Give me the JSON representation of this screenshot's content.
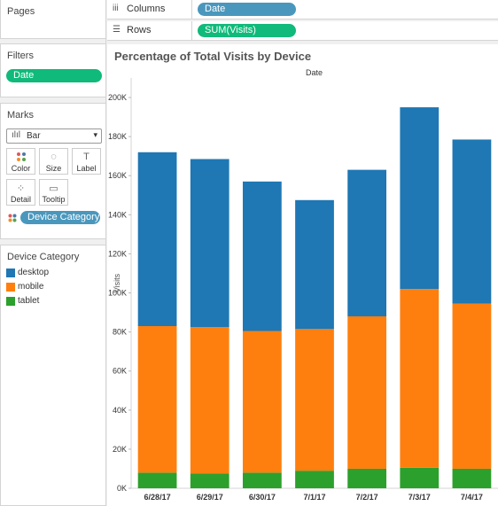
{
  "pages": {
    "title": "Pages"
  },
  "filters": {
    "title": "Filters",
    "pills": [
      "Date"
    ]
  },
  "marks": {
    "title": "Marks",
    "type": "Bar",
    "buttons": [
      {
        "label": "Color",
        "icon": "color-icon"
      },
      {
        "label": "Size",
        "icon": "size-icon"
      },
      {
        "label": "Label",
        "icon": "label-icon"
      },
      {
        "label": "Detail",
        "icon": "detail-icon"
      },
      {
        "label": "Tooltip",
        "icon": "tooltip-icon"
      }
    ],
    "color_pill": "Device Category"
  },
  "legend": {
    "title": "Device Category",
    "items": [
      {
        "label": "desktop",
        "color": "#1f77b4"
      },
      {
        "label": "mobile",
        "color": "#ff7f0e"
      },
      {
        "label": "tablet",
        "color": "#2ca02c"
      }
    ]
  },
  "shelves": {
    "columns": {
      "label": "Columns",
      "pill": "Date"
    },
    "rows": {
      "label": "Rows",
      "pill": "SUM(Visits)"
    }
  },
  "sheet": {
    "title": "Percentage of Total Visits by Device",
    "header": "Date"
  },
  "colors": {
    "pill_green": "#0fba7a",
    "pill_blue": "#4a97bd"
  },
  "chart_data": {
    "type": "bar",
    "stacked": true,
    "categories": [
      "6/28/17",
      "6/29/17",
      "6/30/17",
      "7/1/17",
      "7/2/17",
      "7/3/17",
      "7/4/17"
    ],
    "series": [
      {
        "name": "tablet",
        "color": "#2ca02c",
        "values": [
          8000,
          7500,
          8000,
          9000,
          10000,
          10500,
          10000
        ]
      },
      {
        "name": "mobile",
        "color": "#ff7f0e",
        "values": [
          75000,
          75000,
          72500,
          72500,
          78000,
          91500,
          84500
        ]
      },
      {
        "name": "desktop",
        "color": "#1f77b4",
        "values": [
          89000,
          86000,
          76500,
          66000,
          75000,
          93000,
          84000
        ]
      }
    ],
    "ylabel": "Visits",
    "xlabel": "Date",
    "ylim": [
      0,
      210000
    ],
    "yticks": [
      0,
      20000,
      40000,
      60000,
      80000,
      100000,
      120000,
      140000,
      160000,
      180000,
      200000
    ],
    "ytick_labels": [
      "0K",
      "20K",
      "40K",
      "60K",
      "80K",
      "100K",
      "120K",
      "140K",
      "160K",
      "180K",
      "200K"
    ],
    "grid": false,
    "legend": "left-panel"
  }
}
